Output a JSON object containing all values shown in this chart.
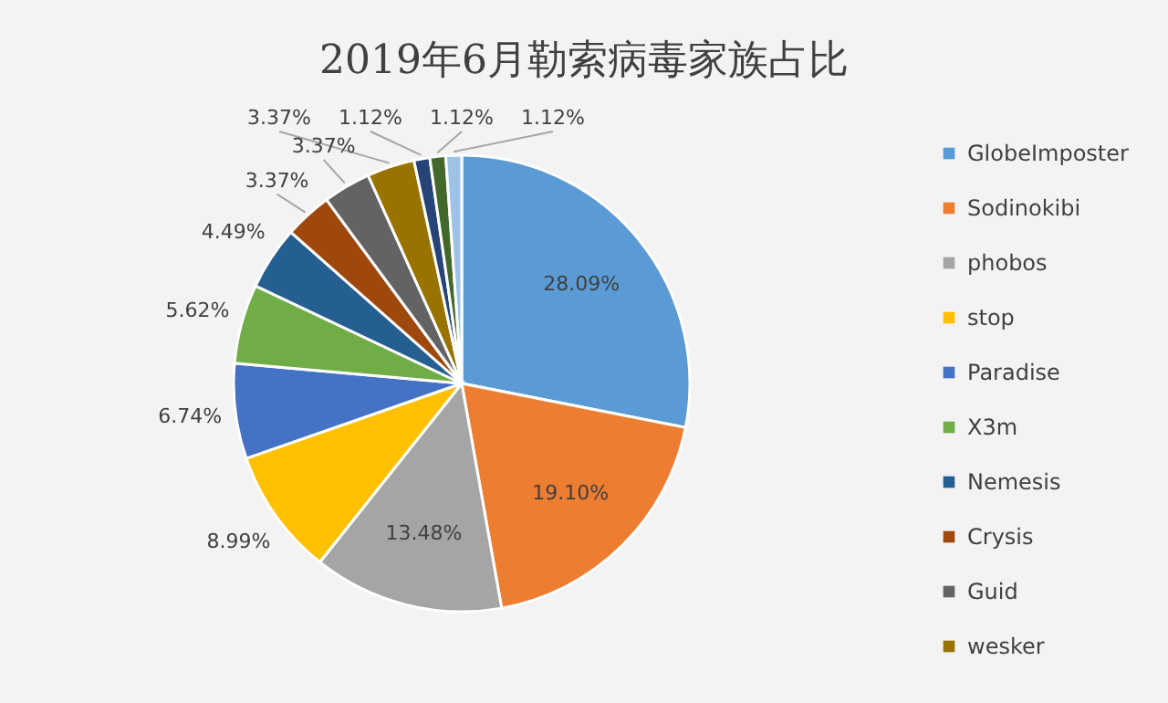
{
  "chart_data": {
    "type": "pie",
    "title": "2019年6月勒索病毒家族占比",
    "categories": [
      "GlobeImposter",
      "Sodinokibi",
      "phobos",
      "stop",
      "Paradise",
      "X3m",
      "Nemesis",
      "Crysis",
      "Guid",
      "wesker",
      null,
      null,
      null
    ],
    "values": [
      28.09,
      19.1,
      13.48,
      8.99,
      6.74,
      5.62,
      4.49,
      3.37,
      3.37,
      3.37,
      1.12,
      1.12,
      1.12
    ],
    "value_labels": [
      "28.09%",
      "19.10%",
      "13.48%",
      "8.99%",
      "6.74%",
      "5.62%",
      "4.49%",
      "3.37%",
      "3.37%",
      "3.37%",
      "1.12%",
      "1.12%",
      "1.12%"
    ],
    "colors": [
      "#5b9bd5",
      "#ed7d31",
      "#a5a5a5",
      "#ffc000",
      "#4472c4",
      "#70ad47",
      "#255e91",
      "#9e480e",
      "#636363",
      "#997300",
      "#264478",
      "#43682b",
      "#9dc3e6"
    ],
    "legend": "right"
  }
}
